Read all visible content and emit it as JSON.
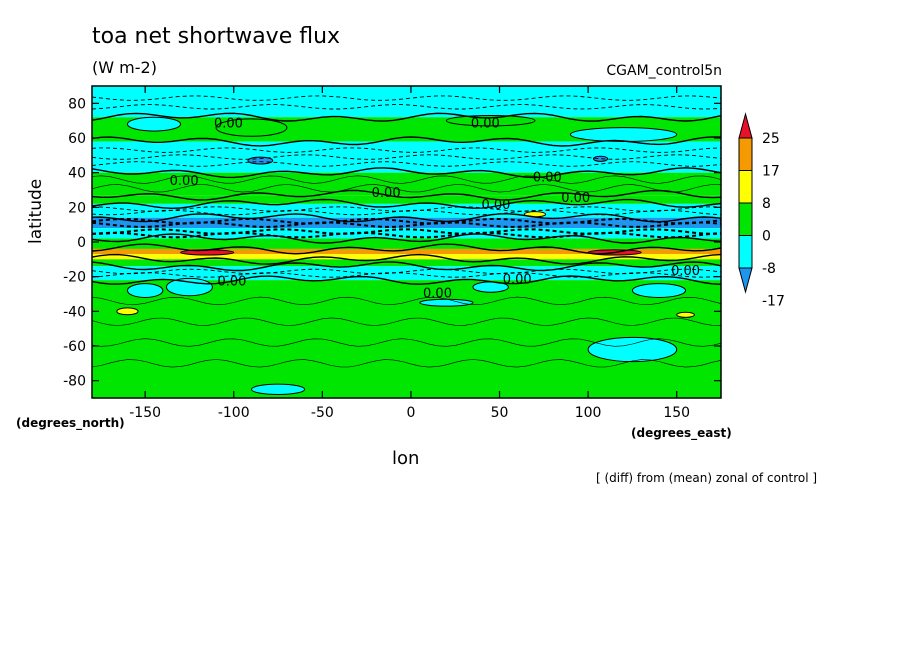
{
  "chart_data": {
    "type": "heatmap",
    "title": "toa net shortwave flux",
    "units": "(W m-2)",
    "run_label": "CGAM_control5n",
    "xlabel": "lon",
    "ylabel": "latitude",
    "x_units": "(degrees_east)",
    "y_units": "(degrees_north)",
    "footnote": "[ (diff) from (mean) zonal of control ]",
    "xlim": [
      -180,
      175
    ],
    "ylim": [
      -90,
      90
    ],
    "x_ticks": [
      -150,
      -100,
      -50,
      0,
      50,
      100,
      150
    ],
    "x_tick_labels": [
      "-150",
      "-100",
      "-50",
      "0",
      "50",
      "100",
      "150"
    ],
    "y_ticks": [
      -80,
      -60,
      -40,
      -20,
      0,
      20,
      40,
      60,
      80
    ],
    "y_tick_labels": [
      "-80",
      "-60",
      "-40",
      "-20",
      "0",
      "20",
      "40",
      "60",
      "80"
    ],
    "colorbar": {
      "levels": [
        25,
        17,
        8,
        0,
        -8,
        -17
      ],
      "labels": [
        "25",
        "17",
        "8",
        "0",
        "-8",
        "-17"
      ],
      "colors": [
        "#e8112a",
        "#f59a00",
        "#ffff00",
        "#00e600",
        "#00ffff",
        "#1e96f0"
      ]
    },
    "contour_label": "0.00",
    "colors": {
      "green": "#00e600",
      "cyan": "#00ffff",
      "blue": "#1e96f0",
      "darkblue": "#1e3cc8",
      "yellow": "#ffff00",
      "orange": "#f59a00",
      "red": "#e8112a"
    },
    "zonal_bands": [
      {
        "lat_min": 72,
        "lat_max": 90,
        "fill": "cyan"
      },
      {
        "lat_min": 58,
        "lat_max": 72,
        "fill": "green"
      },
      {
        "lat_min": 40,
        "lat_max": 58,
        "fill": "cyan"
      },
      {
        "lat_min": 27,
        "lat_max": 40,
        "fill": "green"
      },
      {
        "lat_min": 22,
        "lat_max": 27,
        "fill": "green"
      },
      {
        "lat_min": 14,
        "lat_max": 22,
        "fill": "cyan"
      },
      {
        "lat_min": 8,
        "lat_max": 14,
        "fill": "blue"
      },
      {
        "lat_min": 2,
        "lat_max": 8,
        "fill": "cyan"
      },
      {
        "lat_min": -4,
        "lat_max": 2,
        "fill": "green"
      },
      {
        "lat_min": -7,
        "lat_max": -4,
        "fill": "orange"
      },
      {
        "lat_min": -10,
        "lat_max": -7,
        "fill": "yellow"
      },
      {
        "lat_min": -14,
        "lat_max": -10,
        "fill": "green"
      },
      {
        "lat_min": -22,
        "lat_max": -14,
        "fill": "cyan"
      },
      {
        "lat_min": -90,
        "lat_max": -22,
        "fill": "green"
      }
    ],
    "patches": [
      {
        "lon": -145,
        "lat": 68,
        "dlon": 30,
        "dlat": 8,
        "fill": "cyan"
      },
      {
        "lon": -90,
        "lat": 66,
        "dlon": 40,
        "dlat": 10,
        "fill": "green"
      },
      {
        "lon": 45,
        "lat": 70,
        "dlon": 50,
        "dlat": 6,
        "fill": "green"
      },
      {
        "lon": 120,
        "lat": 62,
        "dlon": 60,
        "dlat": 8,
        "fill": "cyan"
      },
      {
        "lon": -85,
        "lat": 47,
        "dlon": 14,
        "dlat": 4,
        "fill": "blue"
      },
      {
        "lon": 107,
        "lat": 48,
        "dlon": 8,
        "dlat": 3,
        "fill": "blue"
      },
      {
        "lon": -115,
        "lat": -6,
        "dlon": 30,
        "dlat": 3,
        "fill": "red"
      },
      {
        "lon": 115,
        "lat": -6,
        "dlon": 30,
        "dlat": 3,
        "fill": "red"
      },
      {
        "lon": 70,
        "lat": 16,
        "dlon": 12,
        "dlat": 3,
        "fill": "yellow"
      },
      {
        "lon": -125,
        "lat": -26,
        "dlon": 26,
        "dlat": 10,
        "fill": "cyan"
      },
      {
        "lon": -150,
        "lat": -28,
        "dlon": 20,
        "dlat": 8,
        "fill": "cyan"
      },
      {
        "lon": 140,
        "lat": -28,
        "dlon": 30,
        "dlat": 8,
        "fill": "cyan"
      },
      {
        "lon": 45,
        "lat": -26,
        "dlon": 20,
        "dlat": 6,
        "fill": "cyan"
      },
      {
        "lon": 125,
        "lat": -62,
        "dlon": 50,
        "dlat": 14,
        "fill": "cyan"
      },
      {
        "lon": -75,
        "lat": -85,
        "dlon": 30,
        "dlat": 6,
        "fill": "cyan"
      },
      {
        "lon": -160,
        "lat": -40,
        "dlon": 12,
        "dlat": 4,
        "fill": "yellow"
      },
      {
        "lon": 155,
        "lat": -42,
        "dlon": 10,
        "dlat": 3,
        "fill": "yellow"
      },
      {
        "lon": 20,
        "lat": -35,
        "dlon": 30,
        "dlat": 4,
        "fill": "cyan"
      }
    ],
    "contour_label_positions": [
      {
        "lon": -103,
        "lat": 66
      },
      {
        "lon": 42,
        "lat": 66
      },
      {
        "lon": -128,
        "lat": 33
      },
      {
        "lon": -14,
        "lat": 26
      },
      {
        "lon": 77,
        "lat": 35
      },
      {
        "lon": 93,
        "lat": 23
      },
      {
        "lon": 48,
        "lat": 19
      },
      {
        "lon": -101,
        "lat": -25
      },
      {
        "lon": 15,
        "lat": -32
      },
      {
        "lon": 60,
        "lat": -24
      },
      {
        "lon": 155,
        "lat": -19
      }
    ]
  }
}
